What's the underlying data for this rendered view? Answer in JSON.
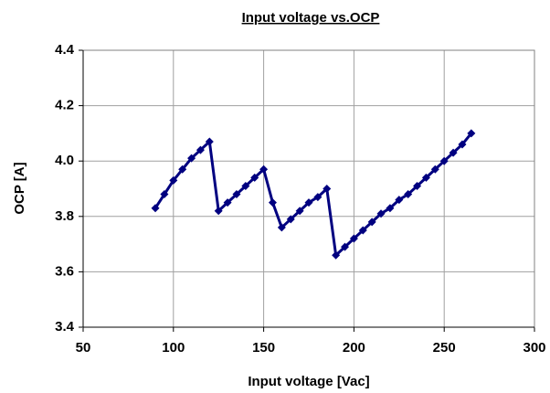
{
  "chart_data": {
    "type": "line",
    "title": "Input voltage vs.OCP",
    "x_label": "Input voltage [Vac]",
    "y_label": "OCP [A]",
    "x": [
      90,
      95,
      100,
      105,
      110,
      115,
      120,
      125,
      130,
      135,
      140,
      145,
      150,
      155,
      160,
      165,
      170,
      175,
      180,
      185,
      190,
      195,
      200,
      205,
      210,
      215,
      220,
      225,
      230,
      235,
      240,
      245,
      250,
      255,
      260,
      265
    ],
    "series": [
      {
        "color": "#000080",
        "values": [
          3.83,
          3.88,
          3.93,
          3.97,
          4.01,
          4.04,
          4.07,
          3.82,
          3.85,
          3.88,
          3.91,
          3.94,
          3.97,
          3.85,
          3.76,
          3.79,
          3.82,
          3.85,
          3.87,
          3.9,
          3.66,
          3.69,
          3.72,
          3.75,
          3.78,
          3.81,
          3.83,
          3.86,
          3.88,
          3.91,
          3.94,
          3.97,
          4.0,
          4.03,
          4.06,
          4.1
        ]
      }
    ],
    "xlim": [
      50,
      300
    ],
    "xticks": [
      50,
      100,
      150,
      200,
      250,
      300
    ],
    "ylim": [
      3.4,
      4.4
    ],
    "yticks": [
      3.4,
      3.6,
      3.8,
      {
        "value": 4,
        "label": "4.0"
      },
      4.2,
      4.4
    ],
    "grid": true
  }
}
